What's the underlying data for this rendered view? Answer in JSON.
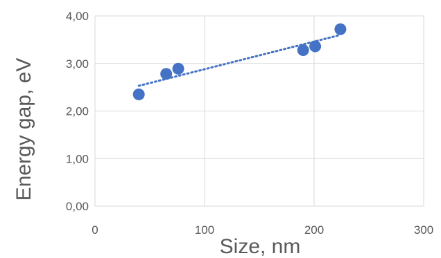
{
  "chart_data": {
    "type": "scatter",
    "xlabel": "Size, nm",
    "ylabel": "Energy gap, eV",
    "xlim": [
      0,
      300
    ],
    "ylim": [
      0,
      4
    ],
    "x_ticks": [
      0,
      100,
      200,
      300
    ],
    "y_ticks": [
      0,
      1,
      2,
      3,
      4
    ],
    "x_tick_labels": [
      "0",
      "100",
      "200",
      "300"
    ],
    "y_tick_labels": [
      "0,00",
      "1,00",
      "2,00",
      "3,00",
      "4,00"
    ],
    "grid": true,
    "legend": "none",
    "series": [
      {
        "points": [
          {
            "x": 40,
            "y": 2.35
          },
          {
            "x": 65,
            "y": 2.78
          },
          {
            "x": 76,
            "y": 2.89
          },
          {
            "x": 190,
            "y": 3.28
          },
          {
            "x": 201,
            "y": 3.36
          },
          {
            "x": 224,
            "y": 3.72
          }
        ],
        "color": "#4472C4",
        "trendline": {
          "type": "linear",
          "style": "dotted",
          "x_range": [
            40,
            224
          ],
          "y_range": [
            2.53,
            3.6
          ]
        }
      }
    ]
  }
}
